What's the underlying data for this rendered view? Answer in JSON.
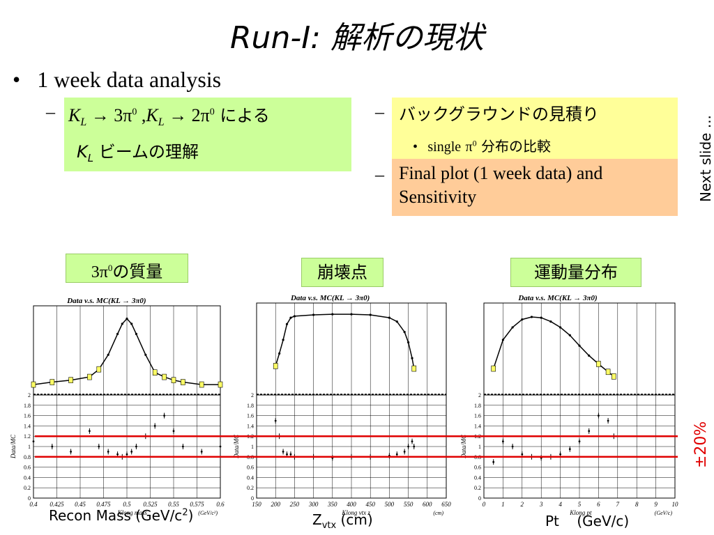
{
  "slide": {
    "title": "Run-I: 解析の現状",
    "bullet_main": "1 week data analysis",
    "left_box": {
      "line1_suffix": " による",
      "line2_suffix": " ビームの理解"
    },
    "right_items": [
      {
        "label": "バックグラウンドの見積り",
        "sub": "分布の比較",
        "sub_prefix": "single"
      },
      {
        "label": "Final plot (1 week data) and Sensitivity"
      }
    ],
    "side_note": "Next slide ...",
    "band_label": "±20%",
    "colors": {
      "green_box": "#ccff99",
      "yellow_box": "#ffff99",
      "orange_box": "#ffcc99",
      "band_lines": "#e00000"
    }
  },
  "panels": [
    {
      "label_suffix": "の質量",
      "xlabel_text": "Recon Mass (GeV/c",
      "xlabel_sup": "2",
      "xlabel_close": ")",
      "plot_title": "Data v.s. MC(K",
      "inner_xlabel": "Klong mass",
      "inner_unit": "(GeV/c²)",
      "x_ticks": [
        "0.4",
        "0.425",
        "0.45",
        "0.475",
        "0.5",
        "0.525",
        "0.55",
        "0.575",
        "0.6"
      ]
    },
    {
      "label": "崩壊点",
      "xlabel_text": "Z",
      "xlabel_sub": "vtx",
      "xlabel_unit": " (cm)",
      "plot_title": "Data v.s. MC(K",
      "inner_xlabel": "Klong vtx z",
      "inner_unit": "(cm)",
      "x_ticks": [
        "150",
        "200",
        "250",
        "300",
        "350",
        "400",
        "450",
        "500",
        "550",
        "600",
        "650"
      ]
    },
    {
      "label": "運動量分布",
      "xlabel_text": "Pt    (GeV/c)",
      "plot_title": "Data v.s. MC(K",
      "inner_xlabel": "Klong pt",
      "inner_unit": "(GeV/c)",
      "x_ticks": [
        "0",
        "1",
        "2",
        "3",
        "4",
        "5",
        "6",
        "7",
        "8",
        "9",
        "10"
      ]
    }
  ],
  "ratio_y_ticks": [
    "2",
    "1.8",
    "1.6",
    "1.4",
    "1.2",
    "1",
    "0.8",
    "0.6",
    "0.4",
    "0.2",
    "0"
  ],
  "ratio_ylabel": "Data/MC",
  "chart_data": [
    {
      "type": "line",
      "ylabel": "Data/MC",
      "x": [
        0.4,
        0.42,
        0.44,
        0.46,
        0.47,
        0.48,
        0.49,
        0.495,
        0.5,
        0.505,
        0.51,
        0.52,
        0.53,
        0.54,
        0.55,
        0.56,
        0.58,
        0.6
      ],
      "top_values": [
        20,
        25,
        30,
        40,
        80,
        300,
        2000,
        5000,
        8000,
        5000,
        2000,
        300,
        60,
        40,
        30,
        25,
        20,
        20
      ],
      "ratio_values": [
        1.1,
        1.0,
        0.9,
        1.3,
        1.0,
        0.9,
        0.85,
        0.8,
        0.85,
        0.9,
        1.0,
        1.2,
        1.4,
        1.6,
        1.3,
        1.0,
        0.9,
        1.0
      ],
      "xlim": [
        0.4,
        0.6
      ],
      "ylim_ratio": [
        0,
        2
      ]
    },
    {
      "type": "line",
      "ylabel": "Data/MC",
      "x": [
        200,
        210,
        220,
        230,
        240,
        250,
        300,
        350,
        400,
        450,
        500,
        520,
        540,
        550,
        560,
        565
      ],
      "top_values": [
        100,
        300,
        1000,
        4000,
        7000,
        8000,
        9000,
        9500,
        9500,
        9000,
        7000,
        5000,
        2000,
        800,
        200,
        80
      ],
      "ratio_values": [
        1.5,
        1.2,
        0.9,
        0.85,
        0.85,
        0.8,
        0.8,
        0.78,
        0.8,
        0.8,
        0.82,
        0.85,
        0.9,
        1.0,
        1.1,
        1.0
      ],
      "xlim": [
        150,
        650
      ],
      "ylim_ratio": [
        0,
        2
      ]
    },
    {
      "type": "line",
      "ylabel": "Data/MC",
      "x": [
        0.5,
        1,
        1.5,
        2,
        2.5,
        3,
        3.5,
        4,
        4.5,
        5,
        5.5,
        6,
        6.5,
        6.8
      ],
      "top_values": [
        80,
        1000,
        3000,
        6000,
        7500,
        7000,
        5000,
        3000,
        1500,
        600,
        250,
        120,
        60,
        40
      ],
      "ratio_values": [
        0.7,
        1.1,
        1.0,
        0.85,
        0.8,
        0.78,
        0.8,
        0.85,
        0.95,
        1.1,
        1.3,
        1.6,
        1.5,
        1.2
      ],
      "xlim": [
        0,
        10
      ],
      "ylim_ratio": [
        0,
        2
      ]
    }
  ]
}
